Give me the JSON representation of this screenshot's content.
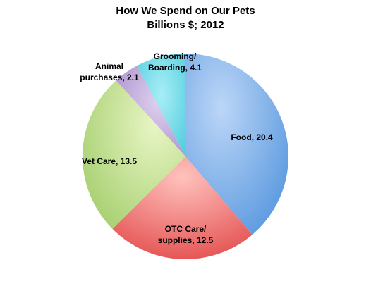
{
  "chart_data": {
    "type": "pie",
    "title": "How We Spend on Our Pets",
    "subtitle": "Billions $; 2012",
    "slices": [
      {
        "label": "Food, 20.4",
        "value": 20.4,
        "color": "#6fa6e6"
      },
      {
        "label": "OTC Care/ supplies, 12.5",
        "value": 12.5,
        "color": "#e86b6b"
      },
      {
        "label": "Vet Care, 13.5",
        "value": 13.5,
        "color": "#b6d97f"
      },
      {
        "label": "Animal purchases, 2.1",
        "value": 2.1,
        "color": "#b79bd3"
      },
      {
        "label": "Grooming/ Boarding, 4.1",
        "value": 4.1,
        "color": "#5fd3e3"
      }
    ],
    "legend": "none"
  }
}
